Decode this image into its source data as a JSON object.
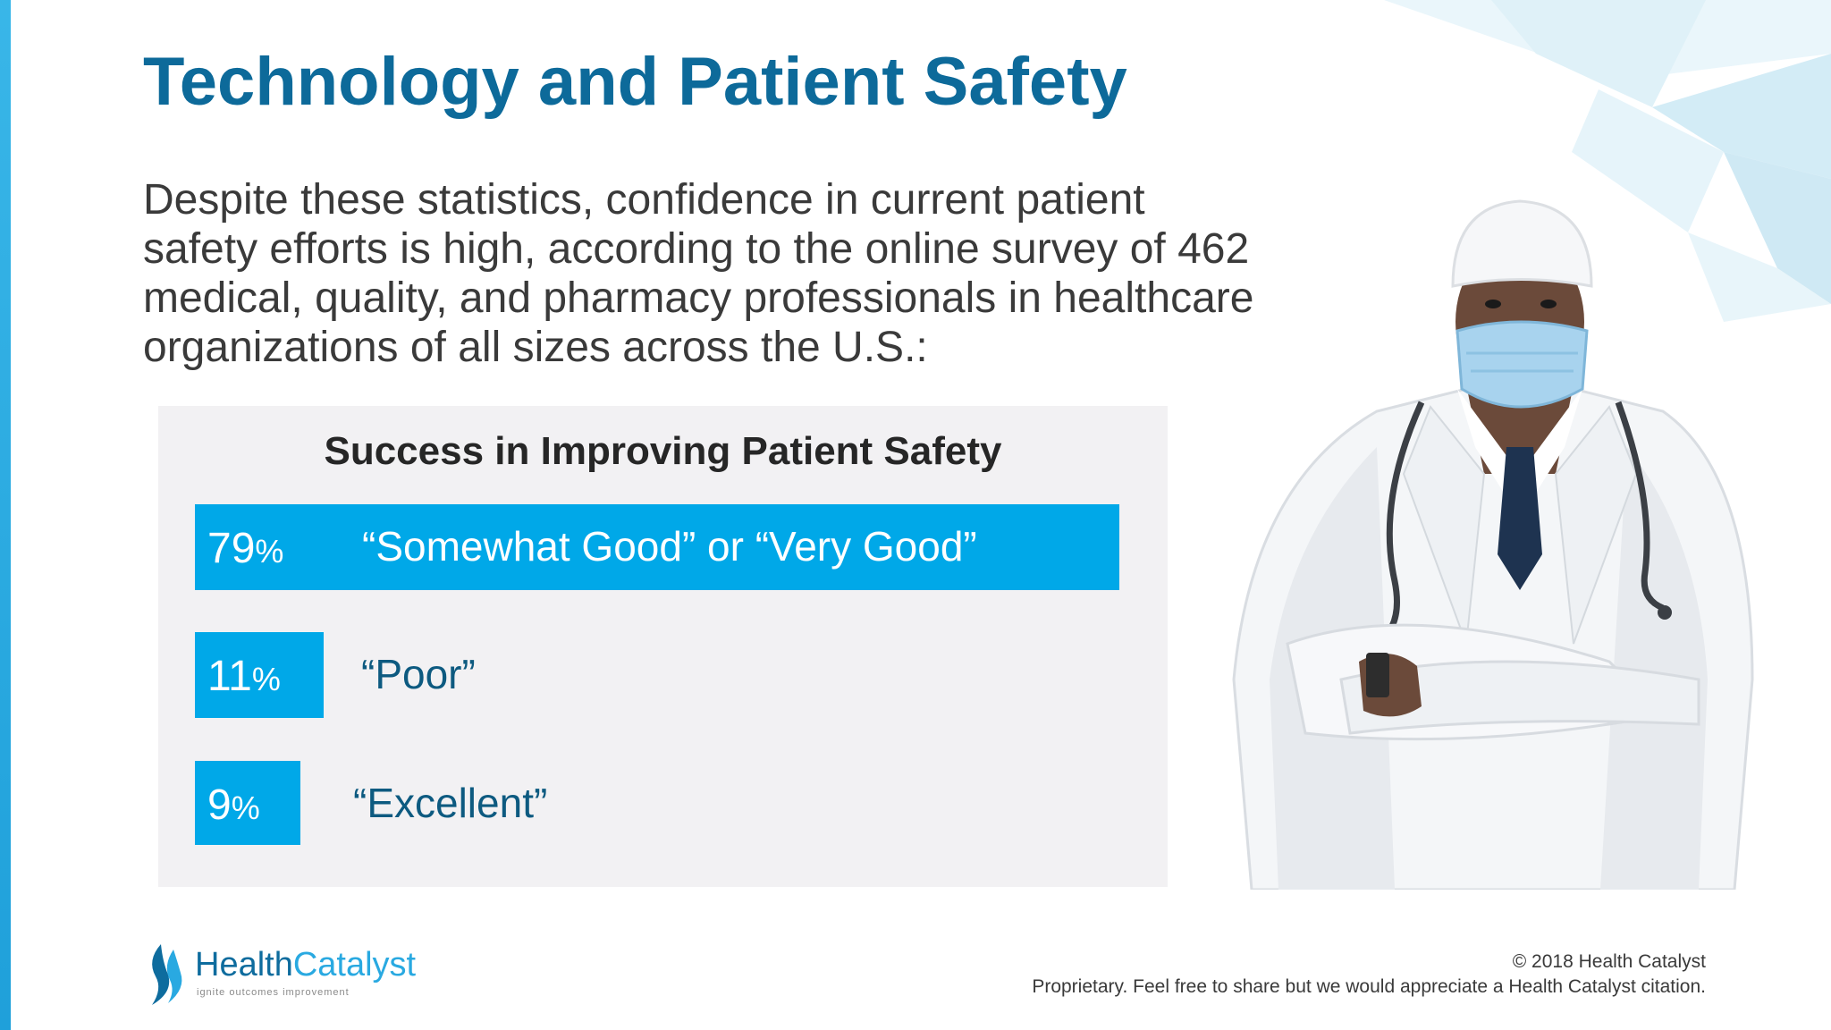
{
  "slide": {
    "title": "Technology and Patient Safety",
    "intro": "Despite these statistics, confidence in current patient safety efforts is high, according to the online survey of 462 medical, quality, and pharmacy professionals in healthcare organizations of all sizes across the U.S.:"
  },
  "chart_data": {
    "type": "bar",
    "title": "Success in Improving Patient Safety",
    "categories": [
      "“Somewhat Good” or “Very Good”",
      "“Poor”",
      "“Excellent”"
    ],
    "values": [
      79,
      11,
      9
    ],
    "value_labels": [
      "79",
      "11",
      "9"
    ],
    "unit": "%",
    "orientation": "horizontal",
    "xlim": [
      0,
      79
    ],
    "grid": false,
    "legend": "none"
  },
  "footer": {
    "copyright": "© 2018 Health Catalyst",
    "notice": "Proprietary. Feel free to share but we would appreciate a Health Catalyst citation."
  },
  "logo": {
    "word1": "Health",
    "word2": "Catalyst",
    "tagline": "ignite outcomes improvement"
  },
  "colors": {
    "title": "#0d6a9a",
    "bar": "#00a8e8",
    "panel": "#f2f1f3",
    "label_primary": "#ffffff",
    "label_secondary": "#0d5a80"
  },
  "icons": {
    "doctor_photo": "doctor-photo-icon",
    "logo_flame": "flame-logo-icon"
  }
}
